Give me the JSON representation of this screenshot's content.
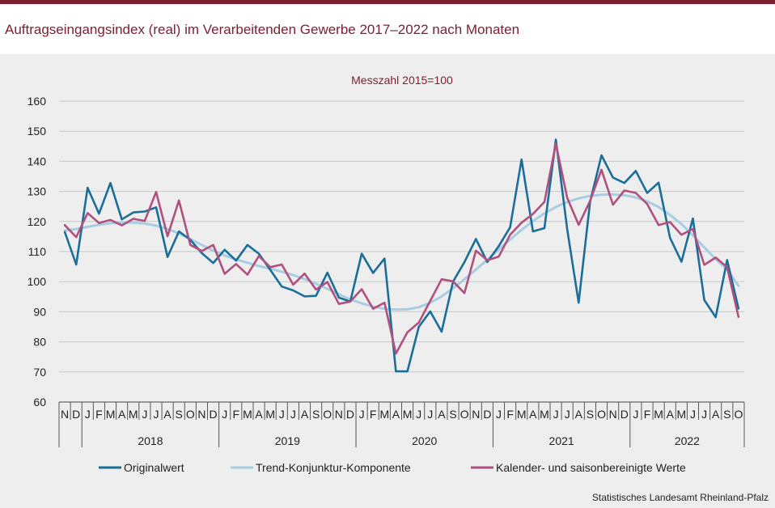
{
  "title": "Auftragseingangsindex (real) im Verarbeitenden Gewerbe 2017–2022 nach Monaten",
  "source": "Statistisches Landesamt Rheinland-Pfalz",
  "colors": {
    "accent": "#7c1d31",
    "original": "#1a6e98",
    "trend": "#a7cde3",
    "seasonal": "#b0507e",
    "panel": "#eeeeee"
  },
  "chart_data": {
    "type": "line",
    "subtitle": "Messzahl 2015=100",
    "ylim": [
      60,
      160
    ],
    "yticks": [
      "60",
      "70",
      "80",
      "90",
      "100",
      "110",
      "120",
      "130",
      "140",
      "150",
      "160"
    ],
    "grid": true,
    "legend_position": "bottom",
    "months": [
      "N",
      "D",
      "J",
      "F",
      "M",
      "A",
      "M",
      "J",
      "J",
      "A",
      "S",
      "O",
      "N",
      "D",
      "J",
      "F",
      "M",
      "A",
      "M",
      "J",
      "J",
      "A",
      "S",
      "O",
      "N",
      "D",
      "J",
      "F",
      "M",
      "A",
      "M",
      "J",
      "J",
      "A",
      "S",
      "O",
      "N",
      "D",
      "J",
      "F",
      "M",
      "A",
      "M",
      "J",
      "J",
      "A",
      "S",
      "O",
      "N",
      "D",
      "J",
      "F",
      "M",
      "A",
      "M",
      "J",
      "J",
      "A",
      "S",
      "O"
    ],
    "years": [
      {
        "label": "2018",
        "start": 2,
        "end": 13
      },
      {
        "label": "2019",
        "start": 14,
        "end": 25
      },
      {
        "label": "2020",
        "start": 26,
        "end": 37
      },
      {
        "label": "2021",
        "start": 38,
        "end": 49
      },
      {
        "label": "2022",
        "start": 50,
        "end": 59
      }
    ],
    "series": [
      {
        "name": "Originalwert",
        "color": "#1a6e98",
        "values": [
          116.5,
          105.7,
          131.2,
          122.6,
          132.8,
          120.7,
          123.0,
          123.3,
          124.7,
          108.2,
          116.7,
          113.9,
          109.5,
          106.2,
          110.6,
          107.0,
          112.2,
          109.3,
          103.9,
          98.4,
          97.1,
          95.1,
          95.3,
          103.0,
          94.7,
          93.4,
          109.3,
          102.9,
          107.7,
          70.2,
          70.2,
          85.0,
          90.1,
          83.4,
          100.0,
          106.5,
          114.2,
          106.5,
          111.8,
          118.1,
          140.6,
          116.7,
          117.8,
          147.2,
          117.3,
          93.0,
          126.5,
          142.0,
          134.6,
          132.8,
          136.8,
          129.5,
          132.9,
          114.6,
          106.6,
          121.0,
          93.9,
          88.2,
          107.2,
          91.1
        ]
      },
      {
        "name": "Trend-Konjunktur-Komponente",
        "color": "#a7cde3",
        "values": [
          117.0,
          117.5,
          118.2,
          118.9,
          119.4,
          119.6,
          119.6,
          119.3,
          118.6,
          117.5,
          116.0,
          114.2,
          112.2,
          110.3,
          108.7,
          107.4,
          106.3,
          105.2,
          104.3,
          103.3,
          102.2,
          100.9,
          99.3,
          97.6,
          95.8,
          94.1,
          92.8,
          91.7,
          91.0,
          90.7,
          90.8,
          91.5,
          93.0,
          95.1,
          97.8,
          100.8,
          104.0,
          107.3,
          110.7,
          114.0,
          117.2,
          120.1,
          122.7,
          124.8,
          126.5,
          127.7,
          128.5,
          128.9,
          129.0,
          128.7,
          128.0,
          126.7,
          124.8,
          122.2,
          119.1,
          115.4,
          111.4,
          107.5,
          104.0,
          98.6
        ]
      },
      {
        "name": "Kalender- und saisonbereinigte Werte",
        "color": "#b0507e",
        "values": [
          118.8,
          114.8,
          122.8,
          119.5,
          120.5,
          118.7,
          120.9,
          120.2,
          129.8,
          115.1,
          127.0,
          112.2,
          110.2,
          112.2,
          102.6,
          105.9,
          102.3,
          108.5,
          104.8,
          105.7,
          99.0,
          102.7,
          97.4,
          99.9,
          92.6,
          93.4,
          97.5,
          91.0,
          93.0,
          76.1,
          83.2,
          86.4,
          93.6,
          100.8,
          100.1,
          96.2,
          110.3,
          107.1,
          108.3,
          115.6,
          119.6,
          122.5,
          126.5,
          145.9,
          127.8,
          118.9,
          126.8,
          137.2,
          125.6,
          130.3,
          129.5,
          125.8,
          118.8,
          119.8,
          115.6,
          117.5,
          105.6,
          108.0,
          104.8,
          88.3
        ]
      }
    ]
  }
}
